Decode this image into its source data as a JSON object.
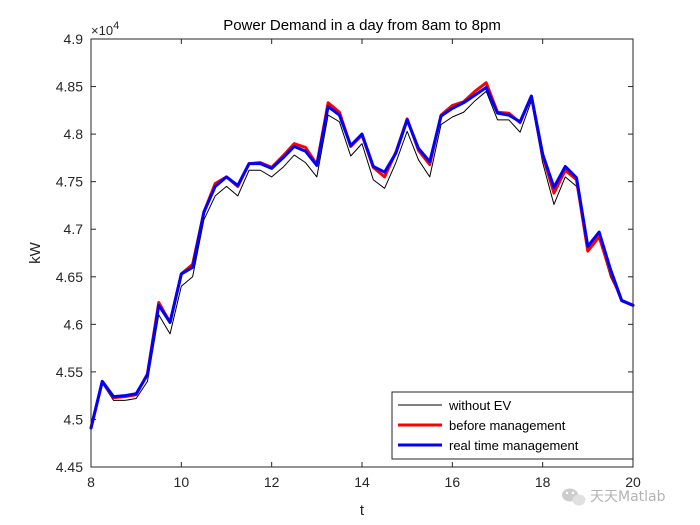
{
  "chart_data": {
    "type": "line",
    "title": "Power Demand in a day from 8am to 8pm",
    "xlabel": "t",
    "ylabel": "kW",
    "y_multiplier": "×10",
    "y_multiplier_exponent": "4",
    "xlim": [
      8,
      20
    ],
    "ylim": [
      4.45,
      4.9
    ],
    "xticks": [
      8,
      10,
      12,
      14,
      16,
      18,
      20
    ],
    "yticks": [
      4.45,
      4.5,
      4.55,
      4.6,
      4.65,
      4.7,
      4.75,
      4.8,
      4.85,
      4.9
    ],
    "xtick_labels": [
      "8",
      "10",
      "12",
      "14",
      "16",
      "18",
      "20"
    ],
    "ytick_labels": [
      "4.45",
      "4.5",
      "4.55",
      "4.6",
      "4.65",
      "4.7",
      "4.75",
      "4.8",
      "4.85",
      "4.9"
    ],
    "grid": false,
    "legend_position": "bottom-right",
    "x": [
      8,
      8.25,
      8.5,
      8.75,
      9,
      9.25,
      9.5,
      9.75,
      10,
      10.25,
      10.5,
      10.75,
      11,
      11.25,
      11.5,
      11.75,
      12,
      12.25,
      12.5,
      12.75,
      13,
      13.25,
      13.5,
      13.75,
      14,
      14.25,
      14.5,
      14.75,
      15,
      15.25,
      15.5,
      15.75,
      16,
      16.25,
      16.5,
      16.75,
      17,
      17.25,
      17.5,
      17.75,
      18,
      18.25,
      18.5,
      18.75,
      19,
      19.25,
      19.5,
      19.75,
      20
    ],
    "series": [
      {
        "name": "without EV",
        "color": "#000000",
        "width": 1,
        "values": [
          4.491,
          4.538,
          4.52,
          4.52,
          4.522,
          4.54,
          4.61,
          4.59,
          4.64,
          4.65,
          4.71,
          4.735,
          4.745,
          4.735,
          4.762,
          4.762,
          4.755,
          4.765,
          4.778,
          4.77,
          4.755,
          4.82,
          4.813,
          4.777,
          4.79,
          4.752,
          4.743,
          4.77,
          4.803,
          4.773,
          4.755,
          4.81,
          4.818,
          4.823,
          4.835,
          4.845,
          4.815,
          4.815,
          4.802,
          4.835,
          4.77,
          4.726,
          4.755,
          4.745,
          4.68,
          4.69,
          4.65,
          4.625,
          4.62
        ]
      },
      {
        "name": "before management",
        "color": "#ff0000",
        "width": 3,
        "values": [
          4.491,
          4.54,
          4.523,
          4.524,
          4.526,
          4.548,
          4.623,
          4.602,
          4.653,
          4.663,
          4.718,
          4.748,
          4.755,
          4.745,
          4.769,
          4.77,
          4.765,
          4.777,
          4.79,
          4.786,
          4.768,
          4.833,
          4.823,
          4.787,
          4.799,
          4.765,
          4.755,
          4.781,
          4.816,
          4.783,
          4.768,
          4.82,
          4.83,
          4.834,
          4.845,
          4.854,
          4.823,
          4.822,
          4.812,
          4.84,
          4.778,
          4.738,
          4.762,
          4.752,
          4.677,
          4.692,
          4.655,
          4.625,
          4.62
        ]
      },
      {
        "name": "real time management",
        "color": "#0000ff",
        "width": 3,
        "values": [
          4.491,
          4.54,
          4.524,
          4.525,
          4.527,
          4.547,
          4.62,
          4.602,
          4.653,
          4.66,
          4.718,
          4.745,
          4.755,
          4.746,
          4.769,
          4.769,
          4.764,
          4.775,
          4.787,
          4.782,
          4.767,
          4.829,
          4.82,
          4.788,
          4.8,
          4.766,
          4.76,
          4.78,
          4.815,
          4.785,
          4.771,
          4.819,
          4.827,
          4.833,
          4.841,
          4.849,
          4.822,
          4.82,
          4.813,
          4.84,
          4.779,
          4.744,
          4.766,
          4.754,
          4.682,
          4.697,
          4.658,
          4.625,
          4.62
        ]
      }
    ]
  },
  "watermark": {
    "text": "天天Matlab",
    "icon": "wechat-icon"
  }
}
